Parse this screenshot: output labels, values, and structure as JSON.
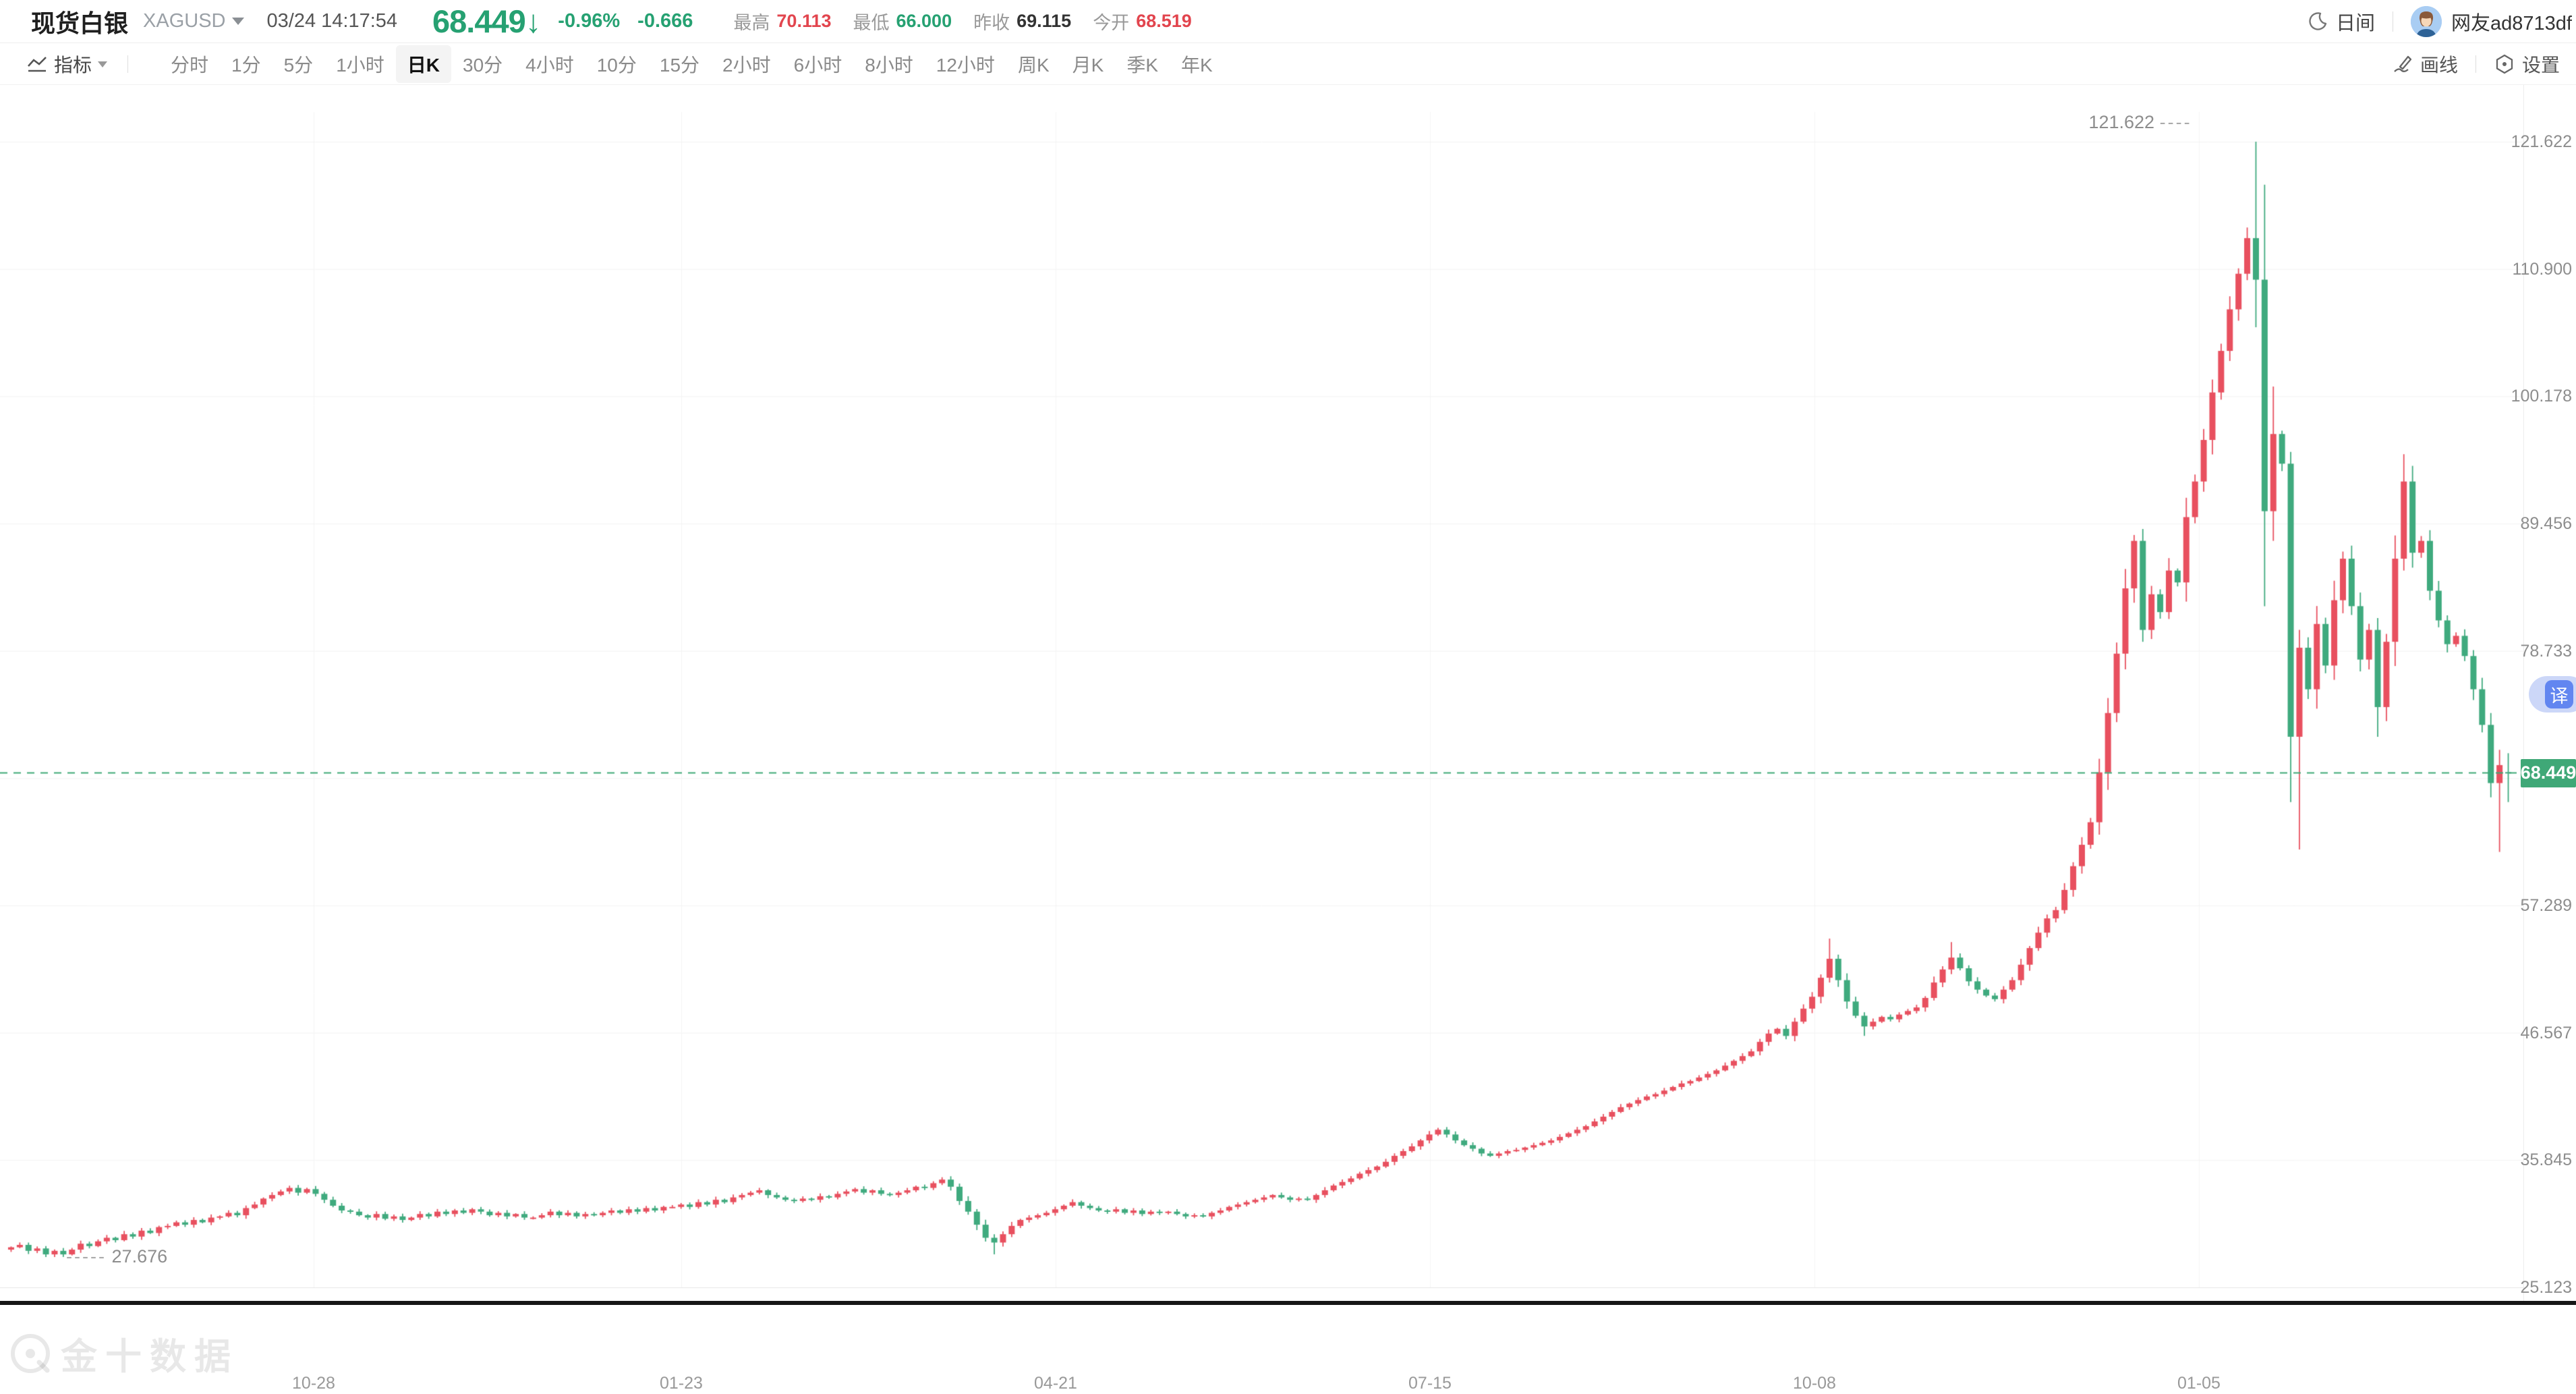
{
  "header": {
    "title": "现货白银",
    "symbol": "XAGUSD",
    "timestamp": "03/24 14:17:54",
    "price": "68.449",
    "price_arrow": "↓",
    "change_percent": "-0.96%",
    "change_value": "-0.666",
    "stats": [
      {
        "label": "最高",
        "value": "70.113",
        "color": "red"
      },
      {
        "label": "最低",
        "value": "66.000",
        "color": "green"
      },
      {
        "label": "昨收",
        "value": "69.115",
        "color": "dark"
      },
      {
        "label": "今开",
        "value": "68.519",
        "color": "red"
      }
    ],
    "theme_toggle": "日间",
    "username": "网友ad8713df"
  },
  "toolbar": {
    "indicator_label": "指标",
    "timeframes": [
      {
        "label": "分时",
        "selected": false
      },
      {
        "label": "1分",
        "selected": false
      },
      {
        "label": "5分",
        "selected": false
      },
      {
        "label": "1小时",
        "selected": false
      },
      {
        "label": "日K",
        "selected": true
      },
      {
        "label": "30分",
        "selected": false
      },
      {
        "label": "4小时",
        "selected": false
      },
      {
        "label": "10分",
        "selected": false
      },
      {
        "label": "15分",
        "selected": false
      },
      {
        "label": "2小时",
        "selected": false
      },
      {
        "label": "6小时",
        "selected": false
      },
      {
        "label": "8小时",
        "selected": false
      },
      {
        "label": "12小时",
        "selected": false
      },
      {
        "label": "周K",
        "selected": false
      },
      {
        "label": "月K",
        "selected": false
      },
      {
        "label": "季K",
        "selected": false
      },
      {
        "label": "年K",
        "selected": false
      }
    ],
    "draw_label": "画线",
    "settings_label": "设置"
  },
  "overlay": {
    "translate_button": "译",
    "watermark": "金十数据"
  },
  "chart_data": {
    "type": "candlestick",
    "title": "现货白银 XAGUSD 日K",
    "y_axis": {
      "max": 121.622,
      "min": 25.123,
      "tick_step": 10.722,
      "ticks": [
        "121.622",
        "110.900",
        "100.178",
        "89.456",
        "78.733",
        "",
        "57.289",
        "46.567",
        "35.845",
        "25.123"
      ],
      "tick_hidden_by_tag": "68.011"
    },
    "x_axis": {
      "dates": [
        "10-28",
        "01-23",
        "04-21",
        "07-15",
        "10-08",
        "01-05"
      ]
    },
    "current_price": 68.449,
    "up_color": "#e8505f",
    "down_color": "#3faa7e",
    "annotations": {
      "high": {
        "value": "121.622",
        "dashes": "----",
        "index": 258,
        "price": 121.622
      },
      "low": {
        "value": "27.676",
        "dashes": "-----",
        "index": 4,
        "price": 27.676
      }
    },
    "closes": [
      28.5,
      28.7,
      28.2,
      28.4,
      27.9,
      28.2,
      27.9,
      28.3,
      28.8,
      28.6,
      29.0,
      29.3,
      29.1,
      29.6,
      29.4,
      29.9,
      29.7,
      30.2,
      30.3,
      30.6,
      30.4,
      30.8,
      30.6,
      31.0,
      31.1,
      31.4,
      31.2,
      31.8,
      32.1,
      32.6,
      32.9,
      33.2,
      33.5,
      33.1,
      33.4,
      33.0,
      32.5,
      32.0,
      31.6,
      31.5,
      31.2,
      31.0,
      31.3,
      30.9,
      31.1,
      30.8,
      31.0,
      31.3,
      31.1,
      31.5,
      31.3,
      31.6,
      31.4,
      31.7,
      31.5,
      31.2,
      31.4,
      31.1,
      31.3,
      31.0,
      31.0,
      31.2,
      31.5,
      31.2,
      31.4,
      31.1,
      31.3,
      31.2,
      31.4,
      31.6,
      31.4,
      31.7,
      31.5,
      31.8,
      31.6,
      31.9,
      31.9,
      32.1,
      31.9,
      32.3,
      32.1,
      32.5,
      32.3,
      32.7,
      32.9,
      33.1,
      33.3,
      32.9,
      32.7,
      32.5,
      32.4,
      32.6,
      32.5,
      32.8,
      32.7,
      33.0,
      33.2,
      33.4,
      33.1,
      33.3,
      33.0,
      32.9,
      33.1,
      33.3,
      33.6,
      33.5,
      33.9,
      34.2,
      33.6,
      32.4,
      31.5,
      30.4,
      29.3,
      28.9,
      29.6,
      30.3,
      30.8,
      31.0,
      31.2,
      31.4,
      31.7,
      32.0,
      32.3,
      32.0,
      31.8,
      31.6,
      31.5,
      31.7,
      31.4,
      31.6,
      31.3,
      31.5,
      31.4,
      31.5,
      31.3,
      31.1,
      31.2,
      31.1,
      31.4,
      31.6,
      31.9,
      32.1,
      32.3,
      32.5,
      32.7,
      32.9,
      32.7,
      32.5,
      32.6,
      32.5,
      32.9,
      33.3,
      33.7,
      34.0,
      34.3,
      34.7,
      35.0,
      35.3,
      35.7,
      36.2,
      36.6,
      37.0,
      37.5,
      38.0,
      38.4,
      38.0,
      37.5,
      37.1,
      36.8,
      36.4,
      36.2,
      36.4,
      36.6,
      36.7,
      36.9,
      37.1,
      37.3,
      37.5,
      37.8,
      38.1,
      38.4,
      38.7,
      39.1,
      39.5,
      39.9,
      40.3,
      40.6,
      40.9,
      41.2,
      41.4,
      41.7,
      42.0,
      42.3,
      42.5,
      42.8,
      43.1,
      43.4,
      43.8,
      44.2,
      44.6,
      45.0,
      45.8,
      46.5,
      46.9,
      46.3,
      47.5,
      48.6,
      49.6,
      51.2,
      52.8,
      51.0,
      49.2,
      48.0,
      47.1,
      47.5,
      47.9,
      47.7,
      48.1,
      48.4,
      48.7,
      49.5,
      50.8,
      51.9,
      52.9,
      52.0,
      50.9,
      50.2,
      49.7,
      49.4,
      50.2,
      51.0,
      52.3,
      53.7,
      55.0,
      56.2,
      56.9,
      58.6,
      60.6,
      62.4,
      64.3,
      68.5,
      73.5,
      78.5,
      84.0,
      88.0,
      80.5,
      83.5,
      82.0,
      85.5,
      84.5,
      90.0,
      93.0,
      96.5,
      100.5,
      104.0,
      107.5,
      110.5,
      113.5,
      110.0,
      90.5,
      97.0,
      94.5,
      71.5,
      79.0,
      75.5,
      81.0,
      77.5,
      83.0,
      86.5,
      82.5,
      78.0,
      80.5,
      74.0,
      79.5,
      86.5,
      93.0,
      87.0,
      88.0,
      83.8,
      81.3,
      79.3,
      80.0,
      78.3,
      75.5,
      72.5,
      67.6,
      69.115,
      68.449
    ],
    "overrides": {
      "4": [
        28.4,
        28.6,
        27.676,
        27.9
      ],
      "113": [
        29.3,
        29.6,
        27.9,
        28.9
      ],
      "209": [
        51.2,
        54.5,
        50.8,
        52.8
      ],
      "213": [
        48.0,
        48.3,
        46.3,
        47.1
      ],
      "223": [
        51.9,
        54.2,
        51.5,
        52.9
      ],
      "245": [
        88.0,
        89.0,
        79.5,
        80.5
      ],
      "258": [
        113.5,
        121.622,
        106.0,
        110.0
      ],
      "259": [
        110.0,
        118.0,
        82.5,
        90.5
      ],
      "260": [
        90.5,
        101.0,
        88.0,
        97.0
      ],
      "262": [
        94.5,
        95.5,
        66.0,
        71.5
      ],
      "263": [
        71.5,
        80.5,
        62.0,
        79.0
      ],
      "272": [
        80.5,
        81.5,
        71.5,
        74.0
      ],
      "275": [
        86.5,
        95.3,
        85.5,
        93.0
      ],
      "278": [
        88.0,
        88.9,
        83.0,
        83.8
      ],
      "285": [
        72.5,
        73.5,
        66.4,
        67.6
      ],
      "286": [
        67.6,
        70.4,
        61.8,
        69.115
      ],
      "287": [
        68.519,
        70.113,
        66.0,
        68.449
      ]
    }
  }
}
